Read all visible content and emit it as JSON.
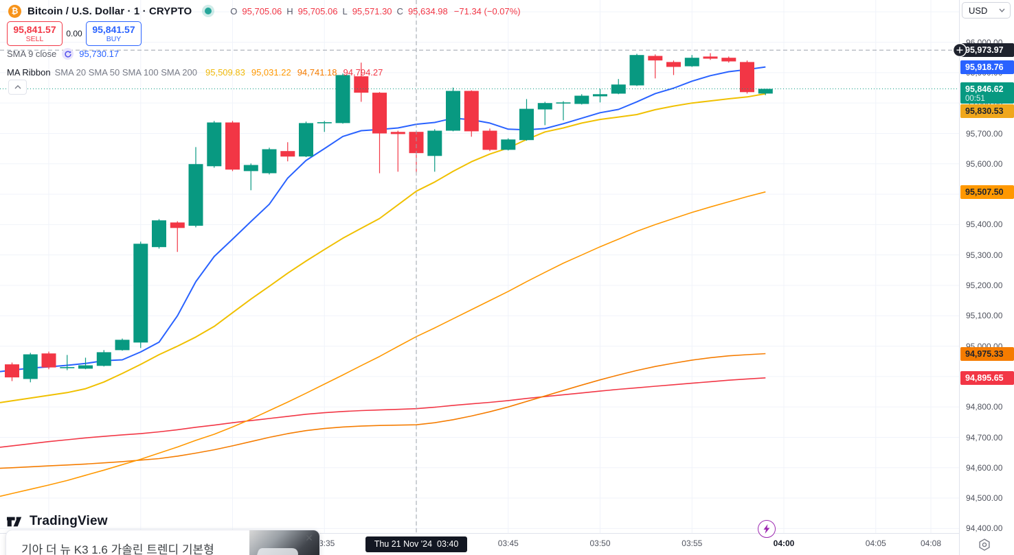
{
  "header": {
    "symbol_title": "Bitcoin / U.S. Dollar · 1 · CRYPTO",
    "ohlc": [
      {
        "label": "O",
        "value": "95,705.06"
      },
      {
        "label": "H",
        "value": "95,705.06"
      },
      {
        "label": "L",
        "value": "95,571.30"
      },
      {
        "label": "C",
        "value": "95,634.98"
      }
    ],
    "change": "−71.34 (−0.07%)"
  },
  "trade_panel": {
    "sell_price": "95,841.57",
    "sell_label": "SELL",
    "spread": "0.00",
    "buy_price": "95,841.57",
    "buy_label": "BUY"
  },
  "indicators": {
    "sma9": {
      "title": "SMA 9 close",
      "value": "95,730.17"
    },
    "ma_ribbon": {
      "title": "MA Ribbon",
      "params": "SMA 20 SMA 50 SMA 100 SMA 200",
      "values": [
        {
          "text": "95,509.83",
          "color": "#f0b90b"
        },
        {
          "text": "95,031.22",
          "color": "#ff9800"
        },
        {
          "text": "94,741.18",
          "color": "#f57c00"
        },
        {
          "text": "94,794.27",
          "color": "#f23645"
        }
      ]
    }
  },
  "price_axis": {
    "currency": "USD",
    "ticks": [
      96000,
      95900,
      95800,
      95700,
      95600,
      95500,
      95400,
      95300,
      95200,
      95100,
      95000,
      94900,
      94800,
      94700,
      94600,
      94500,
      94400
    ],
    "labels": [
      {
        "type": "crosshair-price",
        "price": 95973.97,
        "text": "95,973.97",
        "bg": "#1e222d",
        "fg": "#ffffff",
        "icon": "plus"
      },
      {
        "type": "sma9-price",
        "price": 95918.76,
        "text": "95,918.76",
        "bg": "#2962ff",
        "fg": "#ffffff"
      },
      {
        "type": "last-price",
        "price": 95846.62,
        "text": "95,846.62",
        "countdown": "00:51",
        "bg": "#089981",
        "fg": "#ffffff"
      },
      {
        "type": "sma20-price",
        "price": 95830.53,
        "text": "95,830.53",
        "bg": "#f0a71c",
        "fg": "#1e222d"
      },
      {
        "type": "sma50-price",
        "price": 95507.5,
        "text": "95,507.50",
        "bg": "#ff9800",
        "fg": "#1e222d"
      },
      {
        "type": "sma100-price",
        "price": 94975.33,
        "text": "94,975.33",
        "bg": "#f57c00",
        "fg": "#1e222d"
      },
      {
        "type": "sma200-price",
        "price": 94895.65,
        "text": "94,895.65",
        "bg": "#f23645",
        "fg": "#ffffff"
      }
    ]
  },
  "time_axis": {
    "ticks": [
      {
        "label": "03:35",
        "bar": 17,
        "bold": false
      },
      {
        "label": "03:45",
        "bar": 27,
        "bold": false
      },
      {
        "label": "03:50",
        "bar": 32,
        "bold": false
      },
      {
        "label": "03:55",
        "bar": 37,
        "bold": false
      },
      {
        "label": "04:00",
        "bar": 42,
        "bold": true
      },
      {
        "label": "04:05",
        "bar": 47,
        "bold": false
      },
      {
        "label": "04:08",
        "bar": 50,
        "bold": false
      }
    ],
    "crosshair_label": "Thu 21 Nov '24  03:40"
  },
  "branding": {
    "logo_text": "TradingView"
  },
  "ad": {
    "text": "기아 더 뉴 K3 1.6 가솔린 트렌디 기본형",
    "close_label": "✕"
  },
  "chart_data": {
    "type": "candlestick",
    "title": "Bitcoin / U.S. Dollar",
    "exchange": "CRYPTO",
    "interval": "1 minute",
    "date": "Thu 21 Nov '24",
    "ylim": [
      94385,
      96139
    ],
    "grid": true,
    "grid_bars": [
      2,
      7,
      12,
      17,
      22,
      27,
      32,
      37,
      42,
      47,
      50
    ],
    "crosshair": {
      "bar": 22,
      "price": 95973.97
    },
    "last_price": 95846.62,
    "times": [
      "03:18",
      "03:19",
      "03:20",
      "03:21",
      "03:22",
      "03:23",
      "03:24",
      "03:25",
      "03:26",
      "03:27",
      "03:28",
      "03:29",
      "03:30",
      "03:31",
      "03:32",
      "03:33",
      "03:34",
      "03:35",
      "03:36",
      "03:37",
      "03:38",
      "03:39",
      "03:40",
      "03:41",
      "03:42",
      "03:43",
      "03:44",
      "03:45",
      "03:46",
      "03:47",
      "03:48",
      "03:49",
      "03:50",
      "03:51",
      "03:52",
      "03:53",
      "03:54",
      "03:55",
      "03:56",
      "03:57",
      "03:58",
      "03:59"
    ],
    "ohlc": [
      [
        94940,
        94946,
        94885,
        94897
      ],
      [
        94892,
        94978,
        94881,
        94973
      ],
      [
        94976,
        94982,
        94924,
        94930
      ],
      [
        94930,
        94971,
        94921,
        94931
      ],
      [
        94926,
        94962,
        94924,
        94937
      ],
      [
        94935,
        94987,
        94933,
        94980
      ],
      [
        94987,
        95025,
        94985,
        95021
      ],
      [
        95012,
        95344,
        94994,
        95337
      ],
      [
        95326,
        95418,
        95321,
        95414
      ],
      [
        95407,
        95411,
        95310,
        95389
      ],
      [
        95396,
        95655,
        95391,
        95599
      ],
      [
        95592,
        95741,
        95587,
        95736
      ],
      [
        95736,
        95741,
        95576,
        95581
      ],
      [
        95576,
        95601,
        95513,
        95596
      ],
      [
        95569,
        95653,
        95565,
        95648
      ],
      [
        95642,
        95671,
        95608,
        95624
      ],
      [
        95624,
        95739,
        95622,
        95734
      ],
      [
        95735,
        95741,
        95705,
        95737
      ],
      [
        95734,
        95897,
        95732,
        95892
      ],
      [
        95888,
        95933,
        95804,
        95834
      ],
      [
        95834,
        95836,
        95569,
        95700
      ],
      [
        95705,
        95709,
        95574,
        95698
      ],
      [
        95705.06,
        95705.06,
        95571.3,
        95634.98
      ],
      [
        95626,
        95714,
        95574,
        95709
      ],
      [
        95709,
        95851,
        95707,
        95840
      ],
      [
        95840,
        95842,
        95689,
        95707
      ],
      [
        95709,
        95716,
        95642,
        95646
      ],
      [
        95646,
        95684,
        95644,
        95680
      ],
      [
        95678,
        95813,
        95676,
        95781
      ],
      [
        95779,
        95804,
        95727,
        95800
      ],
      [
        95801,
        95806,
        95743,
        95802
      ],
      [
        95797,
        95829,
        95795,
        95824
      ],
      [
        95822,
        95847,
        95802,
        95829
      ],
      [
        95831,
        95879,
        95829,
        95861
      ],
      [
        95858,
        95962,
        95856,
        95958
      ],
      [
        95955,
        95960,
        95881,
        95940
      ],
      [
        95935,
        95940,
        95892,
        95919
      ],
      [
        95921,
        95958,
        95919,
        95949
      ],
      [
        95953,
        95964,
        95942,
        95946
      ],
      [
        95949,
        95953,
        95933,
        95937
      ],
      [
        95935,
        95940,
        95831,
        95836
      ],
      [
        95831,
        95847,
        95826,
        95846.62
      ]
    ],
    "series": [
      {
        "name": "SMA 200",
        "color": "#f23645",
        "values": [
          94672,
          94679,
          94686,
          94692,
          94698,
          94703,
          94708,
          94712,
          94718,
          94725,
          94733,
          94740,
          94748,
          94755,
          94762,
          94769,
          94776,
          94781,
          94785,
          94788,
          94790,
          94792,
          94794.27,
          94799,
          94805,
          94810,
          94815,
          94821,
          94828,
          94834,
          94840,
          94846,
          94852,
          94858,
          94863,
          94868,
          94873,
          94878,
          94883,
          94888,
          94892,
          94895.65
        ]
      },
      {
        "name": "SMA 100",
        "color": "#f57c00",
        "values": [
          94600,
          94603,
          94606,
          94609,
          94612,
          94616,
          94620,
          94625,
          94630,
          94638,
          94648,
          94659,
          94672,
          94686,
          94700,
          94712,
          94722,
          94729,
          94734,
          94737,
          94739,
          94740,
          94741.18,
          94748,
          94758,
          94770,
          94784,
          94800,
          94818,
          94836,
          94854,
          94872,
          94889,
          94905,
          94920,
          94933,
          94944,
          94954,
          94962,
          94968,
          94972,
          94975.33
        ]
      },
      {
        "name": "SMA 50",
        "color": "#ff9800",
        "values": [
          94515,
          94529,
          94543,
          94558,
          94575,
          94592,
          94610,
          94628,
          94648,
          94668,
          94690,
          94710,
          94734,
          94760,
          94788,
          94816,
          94845,
          94875,
          94905,
          94936,
          94966,
          94999,
          95031.22,
          95060,
          95090,
          95120,
          95150,
          95180,
          95212,
          95243,
          95273,
          95300,
          95327,
          95352,
          95378,
          95400,
          95420,
          95440,
          95458,
          95475,
          95492,
          95507.5
        ]
      },
      {
        "name": "SMA 20",
        "color": "#f0c000",
        "values": [
          94820,
          94829,
          94838,
          94847,
          94860,
          94882,
          94910,
          94940,
          94972,
          95000,
          95030,
          95065,
          95110,
          95155,
          95197,
          95240,
          95280,
          95318,
          95355,
          95388,
          95420,
          95465,
          95509.83,
          95540,
          95575,
          95607,
          95632,
          95652,
          95680,
          95705,
          95718,
          95734,
          95746,
          95754,
          95762,
          95778,
          95790,
          95800,
          95807,
          95814,
          95820,
          95830.53
        ]
      },
      {
        "name": "SMA 9",
        "color": "#2962ff",
        "values": [
          94921,
          94928,
          94932,
          94937,
          94943,
          94952,
          94955,
          94981,
          95013,
          95100,
          95212,
          95295,
          95352,
          95410,
          95467,
          95553,
          95611,
          95650,
          95690,
          95709,
          95713,
          95718,
          95730.17,
          95736,
          95750,
          95745,
          95734,
          95714,
          95712,
          95716,
          95732,
          95750,
          95768,
          95779,
          95804,
          95831,
          95849,
          95872,
          95890,
          95903,
          95910,
          95918.76
        ]
      }
    ],
    "colors": {
      "up": "#089981",
      "down": "#f23645"
    }
  }
}
